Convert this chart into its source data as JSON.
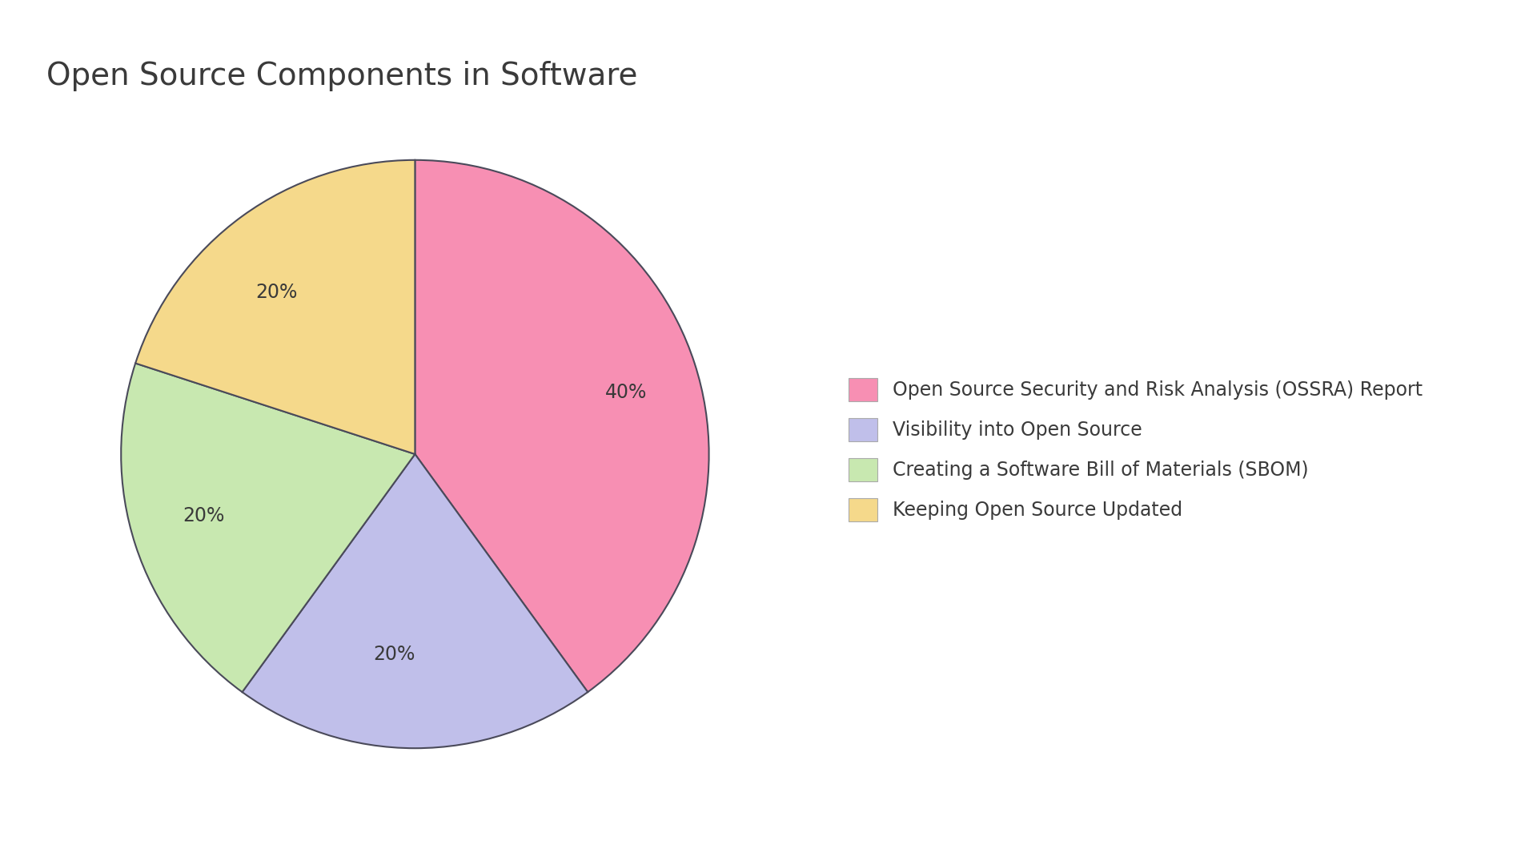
{
  "title": "Open Source Components in Software",
  "slices": [
    {
      "label": "Open Source Security and Risk Analysis (OSSRA) Report",
      "value": 40,
      "color": "#F78FB3",
      "pct_label": "40%"
    },
    {
      "label": "Visibility into Open Source",
      "value": 20,
      "color": "#C0BFEA",
      "pct_label": "20%"
    },
    {
      "label": "Creating a Software Bill of Materials (SBOM)",
      "value": 20,
      "color": "#C8E8B0",
      "pct_label": "20%"
    },
    {
      "label": "Keeping Open Source Updated",
      "value": 20,
      "color": "#F5D98B",
      "pct_label": "20%"
    }
  ],
  "start_angle": 90,
  "title_fontsize": 28,
  "label_fontsize": 17,
  "legend_fontsize": 17,
  "background_color": "#FFFFFF",
  "text_color": "#3a3a3a",
  "edge_color": "#4a4a5a",
  "edge_linewidth": 1.5
}
